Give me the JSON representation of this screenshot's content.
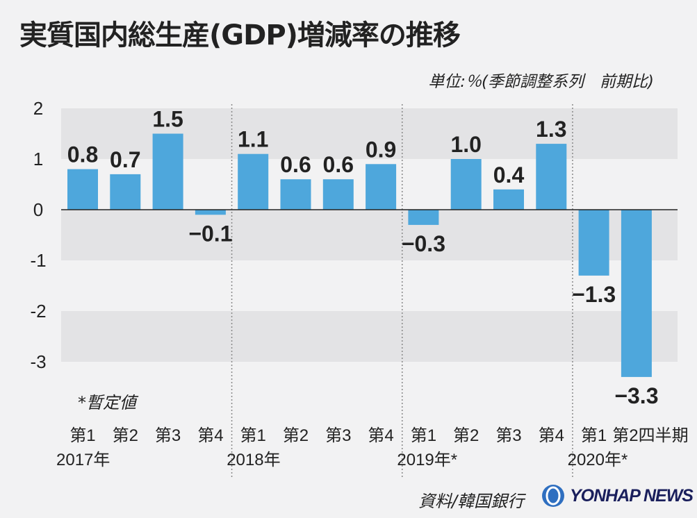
{
  "title": "実質国内総生産(GDP)増減率の推移",
  "unit_note": "単位:％(季節調整系列　前期比)",
  "provisional_note": "*暫定値",
  "source": "資料/韓国銀行",
  "logo_text": "YONHAP NEWS",
  "colors": {
    "bar": "#4ea7dc",
    "band": "#e3e3e5",
    "background": "#f2f2f3",
    "text": "#222222"
  },
  "chart_data": {
    "type": "bar",
    "categories": [
      "第1",
      "第2",
      "第3",
      "第4",
      "第1",
      "第2",
      "第3",
      "第4",
      "第1",
      "第2",
      "第3",
      "第4",
      "第1",
      "第2四半期"
    ],
    "years": [
      {
        "label": "2017年",
        "start_index": 0
      },
      {
        "label": "2018年",
        "start_index": 4
      },
      {
        "label": "2019年*",
        "start_index": 8
      },
      {
        "label": "2020年*",
        "start_index": 12
      }
    ],
    "values": [
      0.8,
      0.7,
      1.5,
      -0.1,
      1.1,
      0.6,
      0.6,
      0.9,
      -0.3,
      1.0,
      0.4,
      1.3,
      -1.3,
      -3.3
    ],
    "value_labels": [
      "0.8",
      "0.7",
      "1.5",
      "−0.1",
      "1.1",
      "0.6",
      "0.6",
      "0.9",
      "−0.3",
      "1.0",
      "0.4",
      "1.3",
      "−1.3",
      "−3.3"
    ],
    "yticks": [
      2,
      1,
      0,
      -1,
      -2,
      -3
    ],
    "ytick_labels": [
      "2",
      "1",
      "0",
      "-1",
      "-2",
      "-3"
    ],
    "ylim": [
      -3.6,
      2
    ],
    "grid": "alternating bands",
    "xlabel": "",
    "ylabel": ""
  }
}
